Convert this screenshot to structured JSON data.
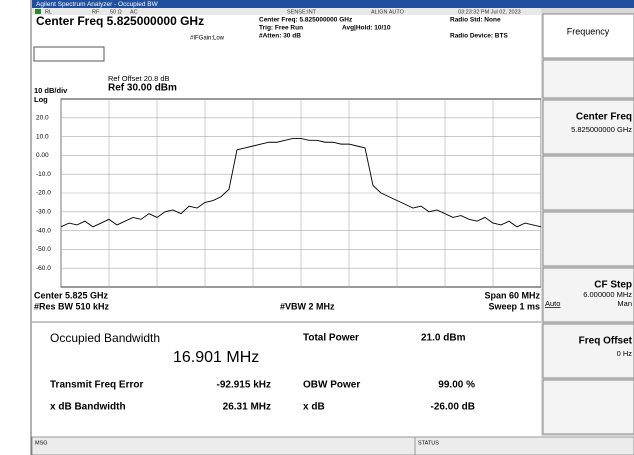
{
  "title_bar": "Agilent Spectrum Analyzer - Occupied BW",
  "status_row": [
    "RL",
    "RF",
    "50 Ω",
    "AC",
    "SENSE:INT",
    "ALIGN AUTO",
    "03:23:32 PM Jul 02, 2023"
  ],
  "header": {
    "center_freq": "Center Freq 5.825000000 GHz",
    "info_center": "Center Freq: 5.825000000 GHz",
    "trig": "Trig: Free Run",
    "avg_hold": "Avg|Hold: 10/10",
    "atten": "#Atten: 30 dB",
    "ifgain": "#IFGain:Low",
    "radio_std": "Radio Std: None",
    "radio_device": "Radio Device: BTS"
  },
  "graph_labels": {
    "scale": "10 dB/div",
    "log": "Log",
    "ref_offset": "Ref Offset 20.8 dB",
    "ref": "Ref 30.00 dBm",
    "center": "Center 5.825 GHz",
    "res_bw": "#Res BW 510 kHz",
    "vbw": "#VBW 2 MHz",
    "span": "Span 60 MHz",
    "sweep": "Sweep 1 ms"
  },
  "chart_data": {
    "type": "line",
    "color": "#000000",
    "x": [
      -30,
      -29,
      -28,
      -27,
      -26,
      -25,
      -24,
      -23,
      -22,
      -21,
      -20,
      -19,
      -18,
      -17,
      -16,
      -15,
      -14,
      -13,
      -12,
      -11,
      -10,
      -9,
      -8,
      -7,
      -6,
      -5,
      -4,
      -3,
      -2,
      -1,
      0,
      1,
      2,
      3,
      4,
      5,
      6,
      7,
      8,
      9,
      10,
      11,
      12,
      13,
      14,
      15,
      16,
      17,
      18,
      19,
      20,
      21,
      22,
      23,
      24,
      25,
      26,
      27,
      28,
      29,
      30
    ],
    "values": [
      -38,
      -36,
      -37,
      -35,
      -38,
      -36,
      -34,
      -37,
      -35,
      -33,
      -34,
      -31,
      -33,
      -30,
      -29,
      -31,
      -27,
      -28,
      -25,
      -24,
      -22,
      -18,
      3,
      4,
      5,
      6,
      7,
      7,
      8,
      9,
      9,
      8,
      8,
      7,
      7,
      6,
      6,
      5,
      4,
      -16,
      -20,
      -22,
      -24,
      -26,
      -28,
      -27,
      -30,
      -29,
      -31,
      -33,
      -32,
      -34,
      -35,
      -33,
      -36,
      -37,
      -35,
      -38,
      -36,
      -37,
      -38
    ],
    "xlim": [
      -30,
      30
    ],
    "xticks": [
      -30,
      -24,
      -18,
      -12,
      -6,
      0,
      6,
      12,
      18,
      24,
      30
    ],
    "ylim": [
      -70,
      30
    ],
    "yticks": [
      {
        "value": 20,
        "label": "20.0"
      },
      {
        "value": 10,
        "label": "10.0"
      },
      {
        "value": 0,
        "label": "0.00"
      },
      {
        "value": -10,
        "label": "-10.0"
      },
      {
        "value": -20,
        "label": "-20.0"
      },
      {
        "value": -30,
        "label": "-30.0"
      },
      {
        "value": -40,
        "label": "-40.0"
      },
      {
        "value": -50,
        "label": "-50.0"
      },
      {
        "value": -60,
        "label": "-60.0"
      }
    ],
    "grid": true
  },
  "results": {
    "obw_label": "Occupied Bandwidth",
    "obw_value": "16.901 MHz",
    "total_power_label": "Total Power",
    "total_power": "21.0 dBm",
    "tx_err_label": "Transmit Freq Error",
    "tx_err": "-92.915 kHz",
    "obw_power_label": "OBW Power",
    "obw_power": "99.00 %",
    "xdb_bw_label": "x dB Bandwidth",
    "xdb_bw": "26.31 MHz",
    "xdb_label": "x dB",
    "xdb": "-26.00 dB"
  },
  "softkeys": {
    "menu": "Frequency",
    "center_freq": "Center Freq",
    "center_freq_value": "5.825000000 GHz",
    "cf_step": "CF Step",
    "cf_step_value": "6.000000 MHz",
    "auto": "Auto",
    "man": "Man",
    "freq_offset": "Freq Offset",
    "freq_offset_value": "0 Hz"
  },
  "status_bar": {
    "msg": "MSG",
    "status": "STATUS"
  }
}
